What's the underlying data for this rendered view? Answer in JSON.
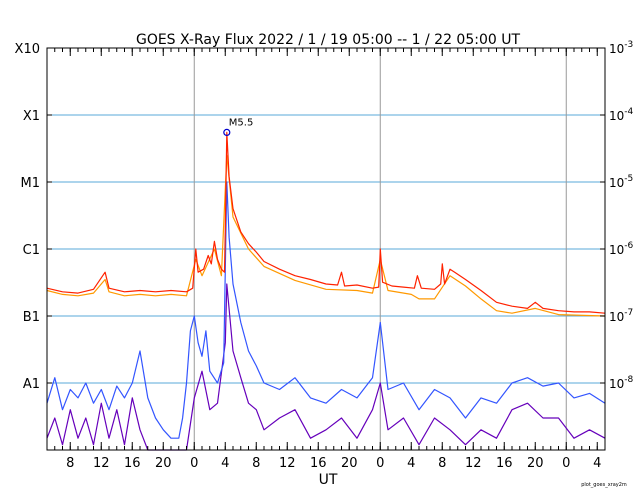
{
  "chart_data": {
    "type": "line",
    "title": "GOES X-Ray Flux   2022 /  1 / 19   05:00 --  1 / 22   05:00   UT",
    "xlabel": "UT",
    "x_range_hours": [
      0,
      72
    ],
    "ylim": [
      1e-09,
      0.001
    ],
    "y_scale": "log",
    "grid": true,
    "left_axis_labels": [
      {
        "label": "X10",
        "flux": 0.001
      },
      {
        "label": "X1",
        "flux": 0.0001
      },
      {
        "label": "M1",
        "flux": 1e-05
      },
      {
        "label": "C1",
        "flux": 1e-06
      },
      {
        "label": "B1",
        "flux": 1e-07
      },
      {
        "label": "A1",
        "flux": 1e-08
      }
    ],
    "right_axis_labels": [
      {
        "base": "10",
        "exp": "-3",
        "flux": 0.001
      },
      {
        "base": "10",
        "exp": "-4",
        "flux": 0.0001
      },
      {
        "base": "10",
        "exp": "-5",
        "flux": 1e-05
      },
      {
        "base": "10",
        "exp": "-6",
        "flux": 1e-06
      },
      {
        "base": "10",
        "exp": "-7",
        "flux": 1e-07
      },
      {
        "base": "10",
        "exp": "-8",
        "flux": 1e-08
      }
    ],
    "x_ticks": [
      {
        "label": "8",
        "hour": 3
      },
      {
        "label": "12",
        "hour": 7
      },
      {
        "label": "16",
        "hour": 11
      },
      {
        "label": "20",
        "hour": 15
      },
      {
        "label": "0",
        "hour": 19
      },
      {
        "label": "4",
        "hour": 23
      },
      {
        "label": "8",
        "hour": 27
      },
      {
        "label": "12",
        "hour": 31
      },
      {
        "label": "16",
        "hour": 35
      },
      {
        "label": "20",
        "hour": 39
      },
      {
        "label": "0",
        "hour": 43
      },
      {
        "label": "4",
        "hour": 47
      },
      {
        "label": "8",
        "hour": 51
      },
      {
        "label": "12",
        "hour": 55
      },
      {
        "label": "16",
        "hour": 59
      },
      {
        "label": "20",
        "hour": 63
      },
      {
        "label": "0",
        "hour": 67
      },
      {
        "label": "4",
        "hour": 71
      }
    ],
    "day_boundaries_hours": [
      19,
      43,
      67
    ],
    "annotation": {
      "label": "M5.5",
      "hour": 23.2,
      "flux": 5.5e-05
    },
    "series": [
      {
        "color": "#ff2200",
        "points": [
          [
            0,
            2.6e-07
          ],
          [
            2,
            2.3e-07
          ],
          [
            4,
            2.2e-07
          ],
          [
            6,
            2.5e-07
          ],
          [
            7.5,
            4.5e-07
          ],
          [
            8,
            2.6e-07
          ],
          [
            10,
            2.3e-07
          ],
          [
            12,
            2.4e-07
          ],
          [
            14,
            2.3e-07
          ],
          [
            16,
            2.4e-07
          ],
          [
            18,
            2.3e-07
          ],
          [
            18.8,
            2.6e-07
          ],
          [
            19.2,
            1e-06
          ],
          [
            19.5,
            4.5e-07
          ],
          [
            20.2,
            5e-07
          ],
          [
            20.8,
            8e-07
          ],
          [
            21.2,
            6e-07
          ],
          [
            21.6,
            1.3e-06
          ],
          [
            22,
            7e-07
          ],
          [
            22.5,
            5e-07
          ],
          [
            22.9,
            4.5e-07
          ],
          [
            23.0,
            2e-06
          ],
          [
            23.2,
            5.5e-05
          ],
          [
            23.5,
            1.2e-05
          ],
          [
            24,
            4e-06
          ],
          [
            25,
            1.8e-06
          ],
          [
            26,
            1.2e-06
          ],
          [
            27,
            9e-07
          ],
          [
            28,
            6.5e-07
          ],
          [
            30,
            5e-07
          ],
          [
            32,
            4e-07
          ],
          [
            34,
            3.5e-07
          ],
          [
            36,
            3e-07
          ],
          [
            37.5,
            2.9e-07
          ],
          [
            38,
            4.5e-07
          ],
          [
            38.4,
            2.8e-07
          ],
          [
            40,
            2.9e-07
          ],
          [
            42,
            2.6e-07
          ],
          [
            42.8,
            2.7e-07
          ],
          [
            43,
            1e-06
          ],
          [
            43.3,
            3.2e-07
          ],
          [
            44.5,
            2.8e-07
          ],
          [
            46,
            2.7e-07
          ],
          [
            47.4,
            2.6e-07
          ],
          [
            47.8,
            4e-07
          ],
          [
            48.3,
            2.6e-07
          ],
          [
            50,
            2.5e-07
          ],
          [
            50.8,
            3e-07
          ],
          [
            51,
            6e-07
          ],
          [
            51.3,
            3e-07
          ],
          [
            52,
            5e-07
          ],
          [
            52.6,
            4.5e-07
          ],
          [
            54,
            3.5e-07
          ],
          [
            56,
            2.4e-07
          ],
          [
            58,
            1.6e-07
          ],
          [
            60,
            1.4e-07
          ],
          [
            62,
            1.3e-07
          ],
          [
            63,
            1.6e-07
          ],
          [
            64,
            1.3e-07
          ],
          [
            66,
            1.2e-07
          ],
          [
            68,
            1.15e-07
          ],
          [
            70,
            1.15e-07
          ],
          [
            72,
            1.1e-07
          ]
        ]
      },
      {
        "color": "#ff9900",
        "points": [
          [
            0,
            2.4e-07
          ],
          [
            2,
            2.1e-07
          ],
          [
            4,
            2e-07
          ],
          [
            6,
            2.2e-07
          ],
          [
            7.5,
            3.5e-07
          ],
          [
            8,
            2.3e-07
          ],
          [
            10,
            2e-07
          ],
          [
            12,
            2.1e-07
          ],
          [
            14,
            2e-07
          ],
          [
            16,
            2.1e-07
          ],
          [
            18,
            2e-07
          ],
          [
            19.2,
            7e-07
          ],
          [
            20,
            4e-07
          ],
          [
            21.6,
            1e-06
          ],
          [
            22.5,
            4e-07
          ],
          [
            23.2,
            2.5e-05
          ],
          [
            24,
            3e-06
          ],
          [
            26,
            1e-06
          ],
          [
            28,
            5.5e-07
          ],
          [
            32,
            3.4e-07
          ],
          [
            36,
            2.5e-07
          ],
          [
            40,
            2.4e-07
          ],
          [
            42,
            2.2e-07
          ],
          [
            43,
            7e-07
          ],
          [
            44,
            2.4e-07
          ],
          [
            47,
            2.1e-07
          ],
          [
            48,
            1.8e-07
          ],
          [
            50,
            1.8e-07
          ],
          [
            52,
            4e-07
          ],
          [
            54,
            2.8e-07
          ],
          [
            56,
            1.8e-07
          ],
          [
            58,
            1.2e-07
          ],
          [
            60,
            1.1e-07
          ],
          [
            63,
            1.3e-07
          ],
          [
            66,
            1.05e-07
          ],
          [
            72,
            1e-07
          ]
        ]
      },
      {
        "color": "#3355ff",
        "points": [
          [
            0,
            5e-09
          ],
          [
            1,
            1.2e-08
          ],
          [
            2,
            4e-09
          ],
          [
            3,
            8e-09
          ],
          [
            4,
            6e-09
          ],
          [
            5,
            1e-08
          ],
          [
            6,
            5e-09
          ],
          [
            7,
            8e-09
          ],
          [
            8,
            4e-09
          ],
          [
            9,
            9e-09
          ],
          [
            10,
            6e-09
          ],
          [
            11,
            1e-08
          ],
          [
            12,
            3e-08
          ],
          [
            13,
            6e-09
          ],
          [
            14,
            3e-09
          ],
          [
            15,
            2e-09
          ],
          [
            16,
            1.5e-09
          ],
          [
            17,
            1.5e-09
          ],
          [
            17.5,
            3e-09
          ],
          [
            18,
            1e-08
          ],
          [
            18.5,
            6e-08
          ],
          [
            19,
            1e-07
          ],
          [
            19.5,
            4e-08
          ],
          [
            20,
            2.5e-08
          ],
          [
            20.5,
            6e-08
          ],
          [
            21,
            1.5e-08
          ],
          [
            22,
            1e-08
          ],
          [
            22.8,
            2e-08
          ],
          [
            23.0,
            5e-07
          ],
          [
            23.2,
            1e-05
          ],
          [
            23.5,
            1.5e-06
          ],
          [
            24,
            3e-07
          ],
          [
            25,
            8e-08
          ],
          [
            26,
            3e-08
          ],
          [
            27,
            1.8e-08
          ],
          [
            28,
            1e-08
          ],
          [
            30,
            8e-09
          ],
          [
            32,
            1.2e-08
          ],
          [
            34,
            6e-09
          ],
          [
            36,
            5e-09
          ],
          [
            38,
            8e-09
          ],
          [
            40,
            6e-09
          ],
          [
            42,
            1.2e-08
          ],
          [
            43,
            8e-08
          ],
          [
            44,
            8e-09
          ],
          [
            46,
            1e-08
          ],
          [
            48,
            4e-09
          ],
          [
            50,
            8e-09
          ],
          [
            52,
            6e-09
          ],
          [
            54,
            3e-09
          ],
          [
            56,
            6e-09
          ],
          [
            58,
            5e-09
          ],
          [
            60,
            1e-08
          ],
          [
            62,
            1.2e-08
          ],
          [
            64,
            9e-09
          ],
          [
            66,
            1e-08
          ],
          [
            68,
            6e-09
          ],
          [
            70,
            7e-09
          ],
          [
            72,
            5e-09
          ]
        ]
      },
      {
        "color": "#6600bb",
        "points": [
          [
            0,
            1.5e-09
          ],
          [
            1,
            3e-09
          ],
          [
            2,
            1.2e-09
          ],
          [
            3,
            4e-09
          ],
          [
            4,
            1.5e-09
          ],
          [
            5,
            3e-09
          ],
          [
            6,
            1.2e-09
          ],
          [
            7,
            5e-09
          ],
          [
            8,
            1.5e-09
          ],
          [
            9,
            4e-09
          ],
          [
            10,
            1.2e-09
          ],
          [
            11,
            6e-09
          ],
          [
            12,
            2e-09
          ],
          [
            13,
            1e-09
          ],
          [
            18,
            1e-09
          ],
          [
            19,
            6e-09
          ],
          [
            20,
            1.5e-08
          ],
          [
            21,
            4e-09
          ],
          [
            22,
            5e-09
          ],
          [
            23,
            4e-08
          ],
          [
            23.2,
            3e-07
          ],
          [
            24,
            3e-08
          ],
          [
            25,
            1.2e-08
          ],
          [
            26,
            5e-09
          ],
          [
            27,
            4e-09
          ],
          [
            28,
            2e-09
          ],
          [
            30,
            3e-09
          ],
          [
            32,
            4e-09
          ],
          [
            34,
            1.5e-09
          ],
          [
            36,
            2e-09
          ],
          [
            38,
            3e-09
          ],
          [
            40,
            1.5e-09
          ],
          [
            42,
            4e-09
          ],
          [
            43,
            1e-08
          ],
          [
            44,
            2e-09
          ],
          [
            46,
            3e-09
          ],
          [
            48,
            1.2e-09
          ],
          [
            50,
            3e-09
          ],
          [
            52,
            2e-09
          ],
          [
            54,
            1.2e-09
          ],
          [
            56,
            2e-09
          ],
          [
            58,
            1.5e-09
          ],
          [
            60,
            4e-09
          ],
          [
            62,
            5e-09
          ],
          [
            64,
            3e-09
          ],
          [
            66,
            3e-09
          ],
          [
            68,
            1.5e-09
          ],
          [
            70,
            2e-09
          ],
          [
            72,
            1.5e-09
          ]
        ]
      }
    ]
  },
  "footer_label": "plot_goes_xray2m"
}
